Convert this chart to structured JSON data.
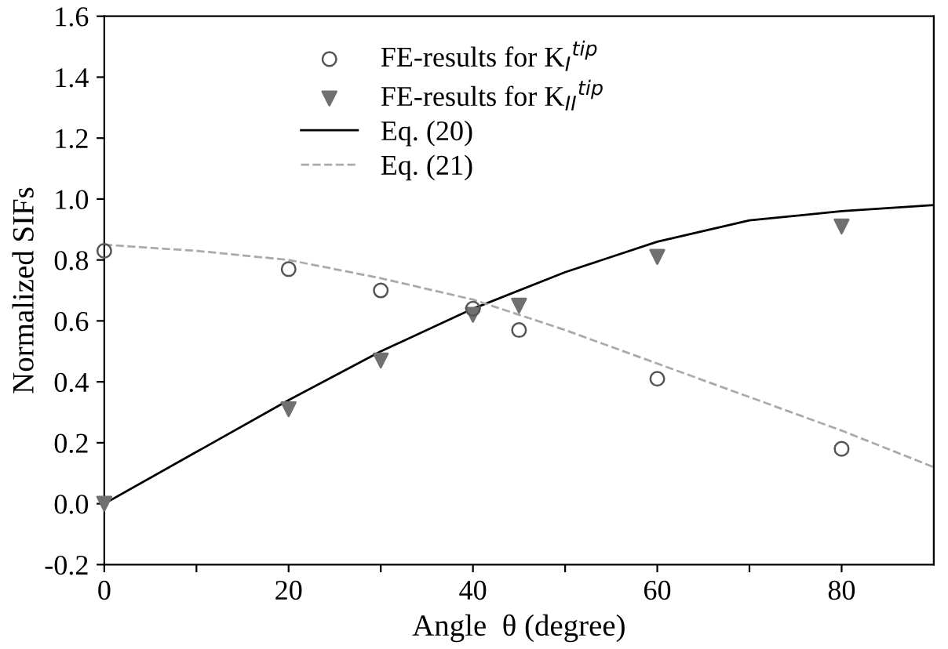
{
  "chart_data": {
    "type": "line",
    "xlabel": "Angle  θ (degree)",
    "ylabel": "Normalized SIFs",
    "xlim": [
      0,
      90
    ],
    "ylim": [
      -0.2,
      1.6
    ],
    "xticks": [
      0,
      {
        "value": 10,
        "label": null
      },
      20,
      {
        "value": 30,
        "label": null
      },
      40,
      {
        "value": 50,
        "label": null
      },
      60,
      {
        "value": 70,
        "label": null
      },
      80
    ],
    "yticks": [
      -0.2,
      {
        "value": 0,
        "label": "0.0"
      },
      0.2,
      0.4,
      0.6,
      0.8,
      {
        "value": 1,
        "label": "1.0"
      },
      1.2,
      1.4,
      1.6
    ],
    "grid": false,
    "legend": "top",
    "series": [
      {
        "name": "FE-results for K$_{I}$$^{tip}$",
        "type": "scatter",
        "marker": "circle",
        "color": "#555555",
        "x": [
          0,
          20,
          30,
          40,
          45,
          60,
          80
        ],
        "values": [
          0.83,
          0.77,
          0.7,
          0.64,
          0.57,
          0.41,
          0.18
        ]
      },
      {
        "name": "FE-results for K$_{II}$$^{tip}$",
        "type": "scatter",
        "marker": "triangle",
        "color": "#707070",
        "x": [
          0,
          20,
          30,
          40,
          45,
          60,
          80
        ],
        "values": [
          0.0,
          0.31,
          0.47,
          0.62,
          0.65,
          0.81,
          0.91
        ]
      },
      {
        "name": "Eq. (20)",
        "line_style": "solid",
        "color": "#000000",
        "x": [
          0,
          10,
          20,
          30,
          40,
          50,
          60,
          70,
          80,
          90
        ],
        "values": [
          0.0,
          0.17,
          0.34,
          0.5,
          0.64,
          0.76,
          0.86,
          0.93,
          0.96,
          0.98
        ]
      },
      {
        "name": "Eq. (21)",
        "line_style": "dashed",
        "color": "#aaaaaa",
        "x": [
          0,
          10,
          20,
          30,
          40,
          50,
          60,
          70,
          80,
          90
        ],
        "values": [
          0.85,
          0.83,
          0.8,
          0.74,
          0.67,
          0.57,
          0.46,
          0.35,
          0.24,
          0.12
        ]
      }
    ]
  }
}
